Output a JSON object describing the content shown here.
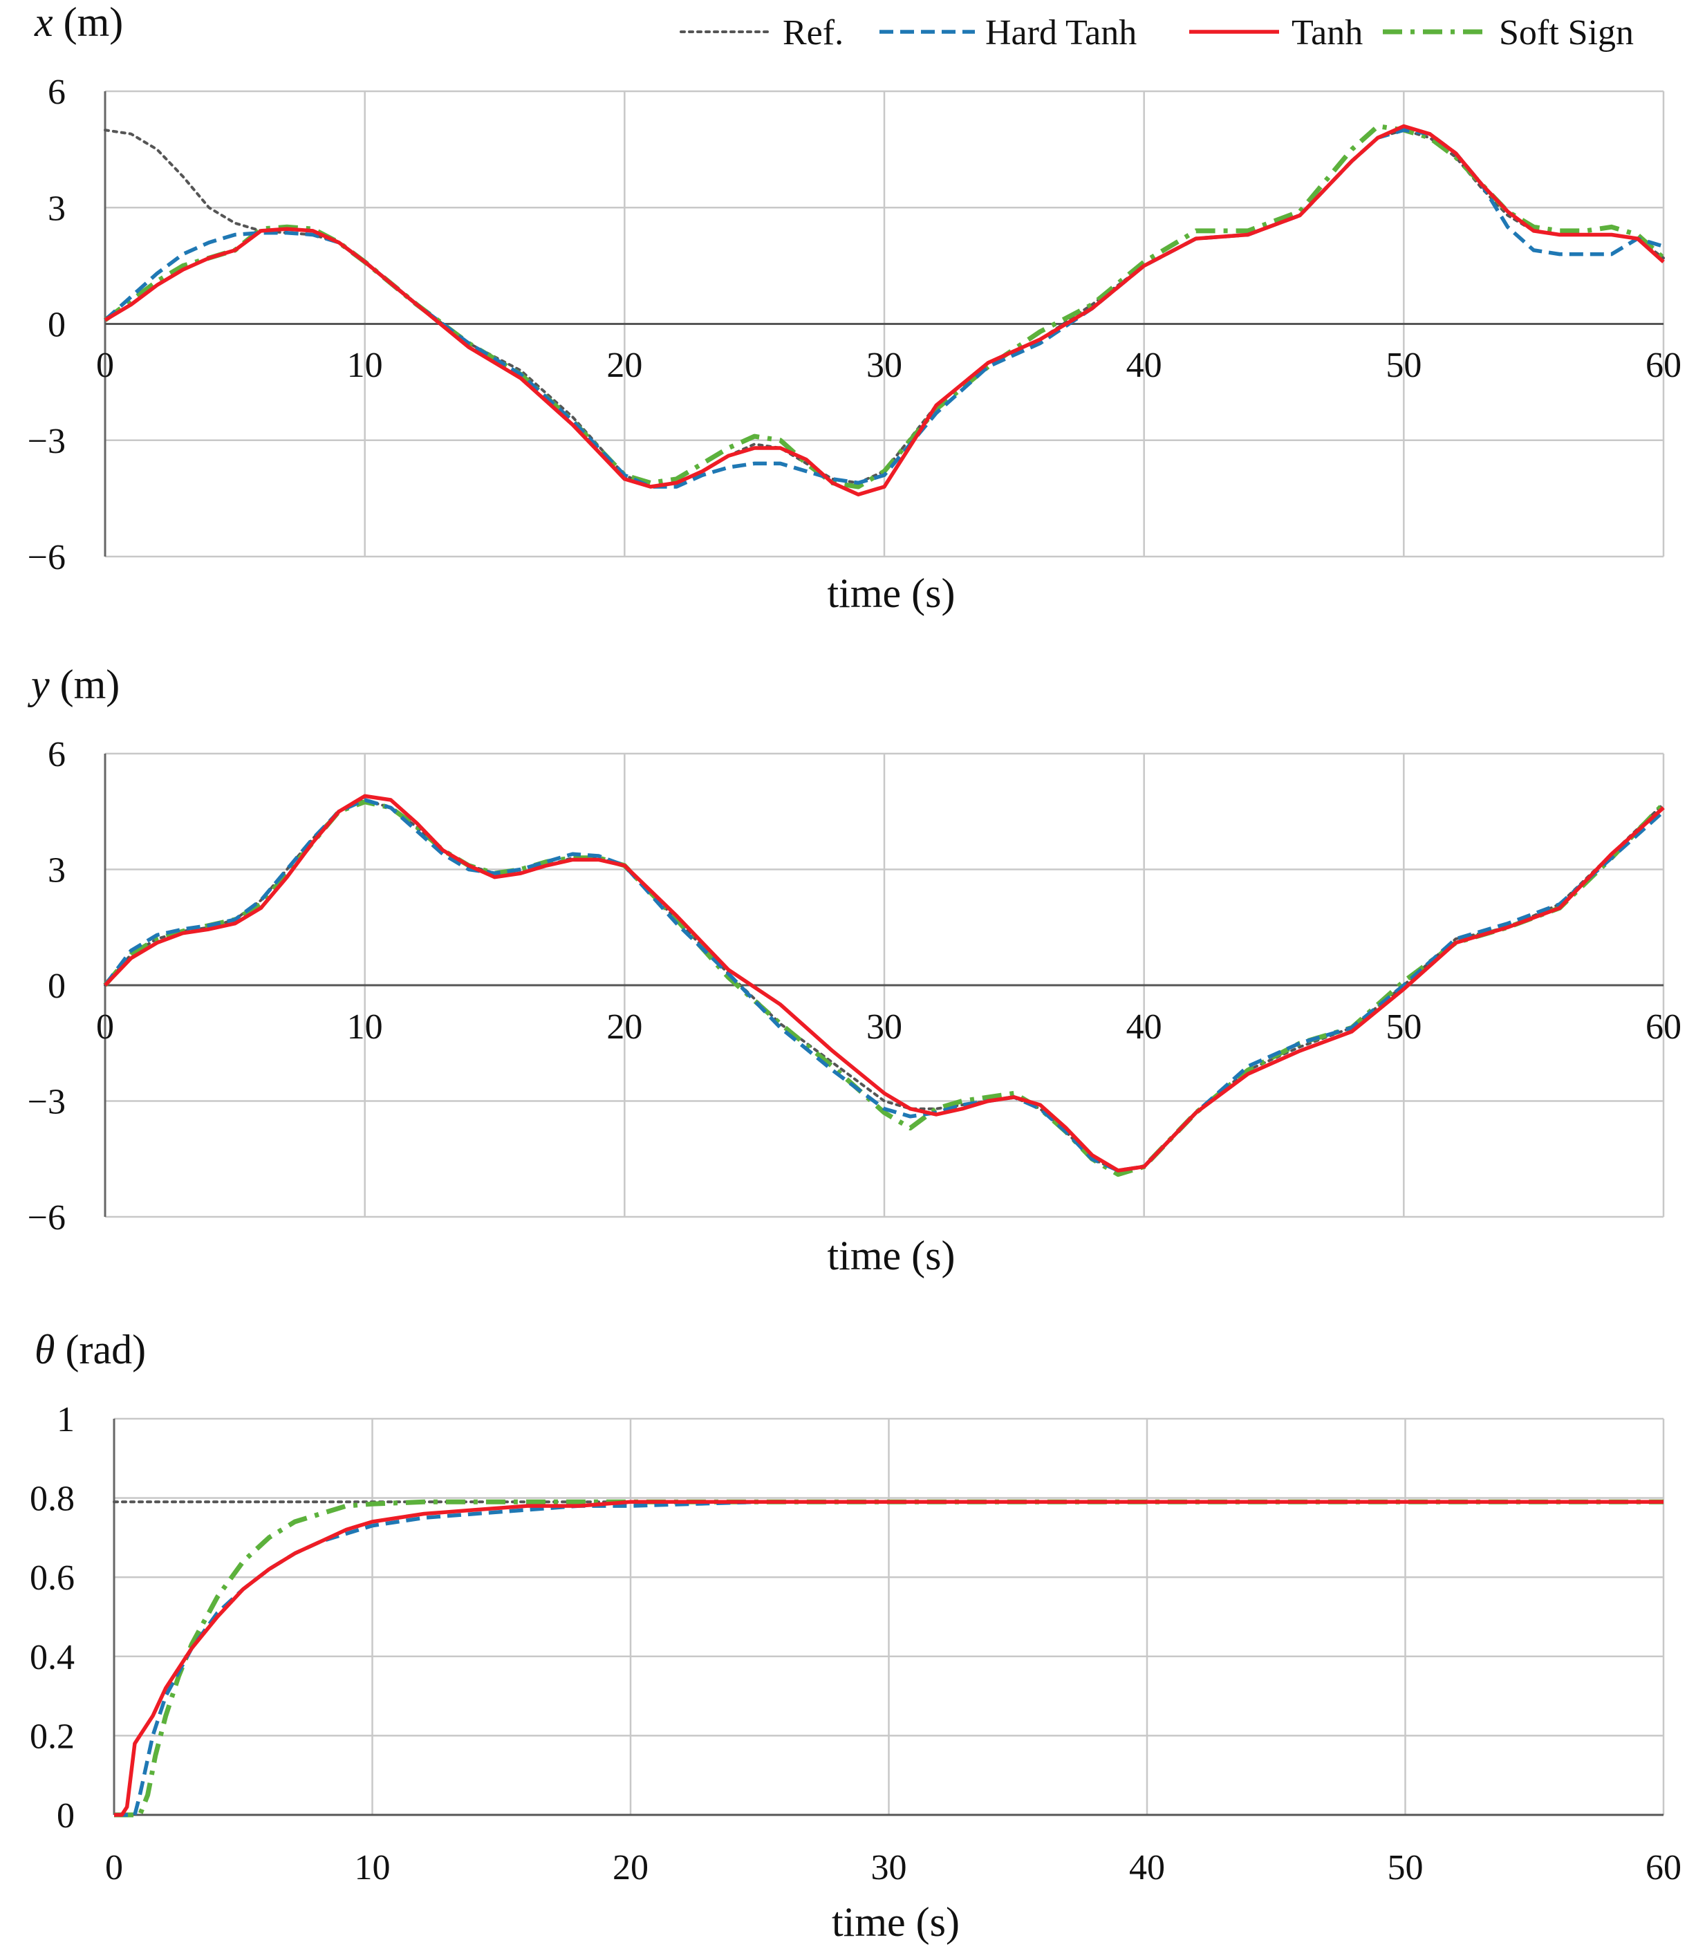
{
  "colors": {
    "ref": "#555555",
    "hard_tanh": "#1f78b4",
    "tanh": "#ee1c25",
    "soft_sign": "#5cb13c",
    "grid": "#c8c8c8",
    "zero_line": "#555555"
  },
  "legend": {
    "placement": "top-right",
    "items": [
      {
        "key": "ref",
        "label": "Ref.",
        "style": "dotted"
      },
      {
        "key": "hard_tanh",
        "label": "Hard Tanh",
        "style": "dashed"
      },
      {
        "key": "tanh",
        "label": "Tanh",
        "style": "solid"
      },
      {
        "key": "soft_sign",
        "label": "Soft Sign",
        "style": "dash-dot"
      }
    ]
  },
  "chart_data": [
    {
      "type": "line",
      "ylabel_var": "x",
      "ylabel_unit": " (m)",
      "xlabel": "time (s)",
      "xlim": [
        0,
        60
      ],
      "ylim": [
        -6,
        6
      ],
      "xticks": [
        "0",
        "10",
        "20",
        "30",
        "40",
        "50",
        "60"
      ],
      "yticks": [
        "6",
        "3",
        "0",
        "−3",
        "−6"
      ],
      "ytick_values": [
        6,
        3,
        0,
        -3,
        -6
      ],
      "grid": true,
      "series": [
        {
          "key": "ref",
          "name": "Ref.",
          "x": [
            0,
            1,
            2,
            3,
            4,
            5,
            6,
            7,
            8,
            9,
            10,
            12,
            14,
            16,
            18,
            20,
            21,
            22,
            23,
            24,
            25,
            26,
            27,
            28,
            29,
            30,
            32,
            34,
            36,
            38,
            40,
            42,
            44,
            46,
            48,
            49,
            50,
            51,
            52,
            53,
            54,
            55,
            56,
            57,
            58,
            59,
            60
          ],
          "y": [
            5,
            4.9,
            4.5,
            3.8,
            3,
            2.6,
            2.4,
            2.35,
            2.3,
            2.1,
            1.6,
            0.5,
            -0.5,
            -1.2,
            -2.4,
            -3.9,
            -4.2,
            -4.1,
            -3.8,
            -3.4,
            -3.1,
            -3.2,
            -3.6,
            -4.0,
            -4.1,
            -3.8,
            -2.1,
            -1,
            -0.4,
            0.5,
            1.5,
            2.2,
            2.3,
            2.8,
            4.2,
            4.8,
            5,
            4.8,
            4.3,
            3.5,
            2.8,
            2.4,
            2.3,
            2.3,
            2.3,
            2.2,
            1.7
          ]
        },
        {
          "key": "hard_tanh",
          "name": "Hard Tanh",
          "x": [
            0,
            1,
            2,
            3,
            4,
            5,
            6,
            7,
            8,
            9,
            10,
            12,
            14,
            16,
            18,
            20,
            21,
            22,
            23,
            24,
            25,
            26,
            27,
            28,
            29,
            30,
            32,
            34,
            36,
            38,
            40,
            42,
            44,
            46,
            48,
            49,
            50,
            51,
            52,
            53,
            54,
            55,
            56,
            57,
            58,
            59,
            60
          ],
          "y": [
            0.1,
            0.7,
            1.3,
            1.8,
            2.1,
            2.3,
            2.35,
            2.35,
            2.3,
            2.1,
            1.6,
            0.5,
            -0.5,
            -1.3,
            -2.5,
            -3.9,
            -4.2,
            -4.2,
            -3.9,
            -3.7,
            -3.6,
            -3.6,
            -3.8,
            -4.0,
            -4.1,
            -3.9,
            -2.3,
            -1.1,
            -0.5,
            0.4,
            1.5,
            2.2,
            2.3,
            2.8,
            4.2,
            4.8,
            5,
            4.9,
            4.4,
            3.6,
            2.5,
            1.9,
            1.8,
            1.8,
            1.8,
            2.2,
            2.0
          ]
        },
        {
          "key": "tanh",
          "name": "Tanh",
          "x": [
            0,
            1,
            2,
            3,
            4,
            5,
            6,
            7,
            8,
            9,
            10,
            12,
            14,
            16,
            18,
            20,
            21,
            22,
            23,
            24,
            25,
            26,
            27,
            28,
            29,
            30,
            32,
            34,
            36,
            38,
            40,
            42,
            44,
            46,
            48,
            49,
            50,
            51,
            52,
            53,
            54,
            55,
            56,
            57,
            58,
            59,
            60
          ],
          "y": [
            0.1,
            0.5,
            1,
            1.4,
            1.7,
            1.9,
            2.4,
            2.45,
            2.4,
            2.1,
            1.6,
            0.5,
            -0.6,
            -1.4,
            -2.6,
            -4.0,
            -4.2,
            -4.1,
            -3.8,
            -3.4,
            -3.2,
            -3.2,
            -3.5,
            -4.1,
            -4.4,
            -4.2,
            -2.1,
            -1,
            -0.4,
            0.4,
            1.5,
            2.2,
            2.3,
            2.8,
            4.2,
            4.8,
            5.1,
            4.9,
            4.4,
            3.6,
            2.9,
            2.4,
            2.3,
            2.3,
            2.3,
            2.2,
            1.6
          ]
        },
        {
          "key": "soft_sign",
          "name": "Soft Sign",
          "x": [
            0,
            1,
            2,
            3,
            4,
            5,
            6,
            7,
            8,
            9,
            10,
            12,
            14,
            16,
            18,
            20,
            21,
            22,
            23,
            24,
            25,
            26,
            27,
            28,
            29,
            30,
            32,
            34,
            36,
            38,
            40,
            42,
            44,
            46,
            48,
            49,
            50,
            51,
            52,
            53,
            54,
            55,
            56,
            57,
            58,
            59,
            60
          ],
          "y": [
            0.1,
            0.6,
            1.1,
            1.5,
            1.7,
            1.9,
            2.45,
            2.5,
            2.45,
            2.1,
            1.6,
            0.5,
            -0.5,
            -1.3,
            -2.5,
            -3.9,
            -4.1,
            -4.0,
            -3.6,
            -3.2,
            -2.9,
            -3.0,
            -3.6,
            -4.1,
            -4.2,
            -3.8,
            -2.2,
            -1.1,
            -0.2,
            0.5,
            1.6,
            2.4,
            2.4,
            2.9,
            4.5,
            5.1,
            5.0,
            4.8,
            4.3,
            3.6,
            2.9,
            2.5,
            2.4,
            2.4,
            2.5,
            2.3,
            1.7
          ]
        }
      ]
    },
    {
      "type": "line",
      "ylabel_var": "y",
      "ylabel_unit": " (m)",
      "xlabel": "time (s)",
      "xlim": [
        0,
        60
      ],
      "ylim": [
        -6,
        6
      ],
      "xticks": [
        "0",
        "10",
        "20",
        "30",
        "40",
        "50",
        "60"
      ],
      "yticks": [
        "6",
        "3",
        "0",
        "−3",
        "−6"
      ],
      "ytick_values": [
        6,
        3,
        0,
        -3,
        -6
      ],
      "grid": true,
      "series": [
        {
          "key": "ref",
          "name": "Ref.",
          "x": [
            0,
            1,
            2,
            3,
            4,
            5,
            6,
            7,
            8,
            9,
            10,
            11,
            12,
            13,
            14,
            15,
            16,
            17,
            18,
            19,
            20,
            22,
            24,
            26,
            28,
            30,
            31,
            32,
            33,
            34,
            35,
            36,
            37,
            38,
            39,
            40,
            42,
            44,
            46,
            48,
            50,
            52,
            54,
            56,
            58,
            60
          ],
          "y": [
            0,
            0.8,
            1.2,
            1.4,
            1.5,
            1.7,
            2.2,
            3,
            3.8,
            4.5,
            4.8,
            4.6,
            4.1,
            3.5,
            3.1,
            2.9,
            2.9,
            3.1,
            3.3,
            3.3,
            3.1,
            1.7,
            0.3,
            -1.0,
            -2.0,
            -3.0,
            -3.2,
            -3.2,
            -3.1,
            -3.0,
            -2.9,
            -3.2,
            -3.8,
            -4.5,
            -4.8,
            -4.7,
            -3.3,
            -2.2,
            -1.6,
            -1.1,
            0,
            1.2,
            1.5,
            2.1,
            3.4,
            4.7
          ]
        },
        {
          "key": "hard_tanh",
          "name": "Hard Tanh",
          "x": [
            0,
            1,
            2,
            3,
            4,
            5,
            6,
            7,
            8,
            9,
            10,
            11,
            12,
            13,
            14,
            15,
            16,
            17,
            18,
            19,
            20,
            22,
            24,
            26,
            28,
            30,
            31,
            32,
            33,
            34,
            35,
            36,
            37,
            38,
            39,
            40,
            42,
            44,
            46,
            48,
            50,
            52,
            54,
            56,
            58,
            60
          ],
          "y": [
            0,
            0.9,
            1.3,
            1.45,
            1.55,
            1.7,
            2.2,
            3,
            3.8,
            4.5,
            4.8,
            4.6,
            4.0,
            3.4,
            3.0,
            2.9,
            3.0,
            3.2,
            3.4,
            3.35,
            3.1,
            1.6,
            0.3,
            -1.1,
            -2.2,
            -3.2,
            -3.4,
            -3.3,
            -3.1,
            -3.0,
            -2.9,
            -3.2,
            -3.8,
            -4.5,
            -4.8,
            -4.7,
            -3.3,
            -2.1,
            -1.5,
            -1.1,
            0,
            1.2,
            1.6,
            2.1,
            3.3,
            4.5
          ]
        },
        {
          "key": "tanh",
          "name": "Tanh",
          "x": [
            0,
            1,
            2,
            3,
            4,
            5,
            6,
            7,
            8,
            9,
            10,
            11,
            12,
            13,
            14,
            15,
            16,
            17,
            18,
            19,
            20,
            22,
            24,
            26,
            28,
            30,
            31,
            32,
            33,
            34,
            35,
            36,
            37,
            38,
            39,
            40,
            42,
            44,
            46,
            48,
            50,
            52,
            54,
            56,
            58,
            60
          ],
          "y": [
            0,
            0.7,
            1.1,
            1.35,
            1.45,
            1.6,
            2.0,
            2.8,
            3.7,
            4.5,
            4.9,
            4.8,
            4.2,
            3.5,
            3.1,
            2.8,
            2.9,
            3.1,
            3.25,
            3.25,
            3.1,
            1.8,
            0.4,
            -0.5,
            -1.7,
            -2.8,
            -3.2,
            -3.35,
            -3.2,
            -3.0,
            -2.9,
            -3.1,
            -3.7,
            -4.4,
            -4.8,
            -4.7,
            -3.3,
            -2.3,
            -1.7,
            -1.2,
            -0.1,
            1.1,
            1.5,
            2.0,
            3.4,
            4.6
          ]
        },
        {
          "key": "soft_sign",
          "name": "Soft Sign",
          "x": [
            0,
            1,
            2,
            3,
            4,
            5,
            6,
            7,
            8,
            9,
            10,
            11,
            12,
            13,
            14,
            15,
            16,
            17,
            18,
            19,
            20,
            22,
            24,
            26,
            28,
            30,
            31,
            32,
            33,
            34,
            35,
            36,
            37,
            38,
            39,
            40,
            42,
            44,
            46,
            48,
            50,
            52,
            54,
            56,
            58,
            60
          ],
          "y": [
            0,
            0.8,
            1.2,
            1.4,
            1.55,
            1.7,
            2.1,
            2.9,
            3.7,
            4.5,
            4.75,
            4.6,
            4.1,
            3.5,
            3.1,
            2.9,
            3.0,
            3.2,
            3.3,
            3.3,
            3.1,
            1.7,
            0.2,
            -1.0,
            -2.1,
            -3.3,
            -3.7,
            -3.2,
            -3.0,
            -2.9,
            -2.8,
            -3.2,
            -3.8,
            -4.5,
            -4.9,
            -4.7,
            -3.3,
            -2.2,
            -1.5,
            -1.1,
            0.1,
            1.1,
            1.5,
            2.0,
            3.3,
            4.7
          ]
        }
      ]
    },
    {
      "type": "line",
      "ylabel_var": "θ",
      "ylabel_unit": " (rad)",
      "xlabel": "time (s)",
      "xlim": [
        0,
        60
      ],
      "ylim": [
        0,
        1
      ],
      "xticks": [
        "0",
        "10",
        "20",
        "30",
        "40",
        "50",
        "60"
      ],
      "yticks": [
        "1",
        "0.8",
        "0.6",
        "0.4",
        "0.2",
        "0"
      ],
      "ytick_values": [
        1,
        0.8,
        0.6,
        0.4,
        0.2,
        0
      ],
      "grid": true,
      "series": [
        {
          "key": "ref",
          "name": "Ref.",
          "x": [
            0,
            60
          ],
          "y": [
            0.79,
            0.79
          ]
        },
        {
          "key": "hard_tanh",
          "name": "Hard Tanh",
          "x": [
            0,
            0.5,
            0.8,
            1,
            1.5,
            2,
            2.5,
            3,
            4,
            5,
            6,
            7,
            8,
            9,
            10,
            12,
            14,
            16,
            18,
            20,
            25,
            30,
            35,
            40,
            45,
            50,
            55,
            60
          ],
          "y": [
            0,
            0,
            0,
            0.05,
            0.2,
            0.3,
            0.36,
            0.42,
            0.51,
            0.57,
            0.62,
            0.66,
            0.69,
            0.71,
            0.73,
            0.75,
            0.76,
            0.77,
            0.78,
            0.78,
            0.79,
            0.79,
            0.79,
            0.79,
            0.79,
            0.79,
            0.79,
            0.79
          ]
        },
        {
          "key": "tanh",
          "name": "Tanh",
          "x": [
            0,
            0.3,
            0.5,
            0.8,
            1,
            1.5,
            2,
            2.5,
            3,
            4,
            5,
            6,
            7,
            8,
            9,
            10,
            12,
            14,
            16,
            18,
            20,
            25,
            30,
            35,
            40,
            45,
            50,
            55,
            60
          ],
          "y": [
            0,
            0,
            0.02,
            0.18,
            0.2,
            0.25,
            0.32,
            0.37,
            0.42,
            0.5,
            0.57,
            0.62,
            0.66,
            0.69,
            0.72,
            0.74,
            0.76,
            0.77,
            0.78,
            0.78,
            0.79,
            0.79,
            0.79,
            0.79,
            0.79,
            0.79,
            0.79,
            0.79,
            0.79
          ]
        },
        {
          "key": "soft_sign",
          "name": "Soft Sign",
          "x": [
            0,
            1,
            1.3,
            1.6,
            2,
            2.5,
            3,
            4,
            5,
            6,
            7,
            8,
            9,
            10,
            12,
            14,
            16,
            18,
            20,
            25,
            30,
            35,
            40,
            45,
            50,
            55,
            60
          ],
          "y": [
            0,
            0,
            0.05,
            0.15,
            0.25,
            0.35,
            0.43,
            0.55,
            0.64,
            0.7,
            0.74,
            0.76,
            0.78,
            0.785,
            0.79,
            0.79,
            0.79,
            0.79,
            0.79,
            0.79,
            0.79,
            0.79,
            0.79,
            0.79,
            0.79,
            0.79,
            0.79
          ]
        }
      ]
    }
  ]
}
